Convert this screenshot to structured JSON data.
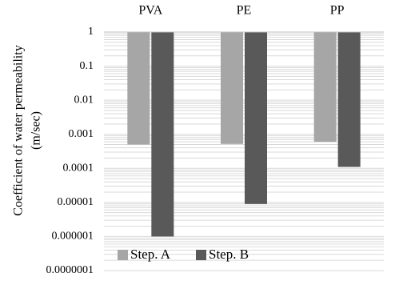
{
  "chart_data": {
    "type": "bar",
    "scale": "log",
    "categories": [
      "PVA",
      "PE",
      "PP"
    ],
    "series": [
      {
        "name": "Step. A",
        "color": "#a6a6a6",
        "values": [
          0.0005,
          0.00052,
          0.0006
        ]
      },
      {
        "name": "Step. B",
        "color": "#595959",
        "values": [
          1e-06,
          9e-06,
          0.00011
        ]
      }
    ],
    "ylabel_line1": "Coefficient of water permeability",
    "ylabel_line2": "(m/sec)",
    "xlabel": "",
    "ylim": [
      1e-07,
      1
    ],
    "yticks": [
      "1",
      "0.1",
      "0.01",
      "0.001",
      "0.0001",
      "0.00001",
      "0.000001",
      "0.0000001"
    ],
    "category_labels_position": "top",
    "grid": true,
    "gridline_color": "#d9d9d9",
    "legend": "bottom-left"
  }
}
